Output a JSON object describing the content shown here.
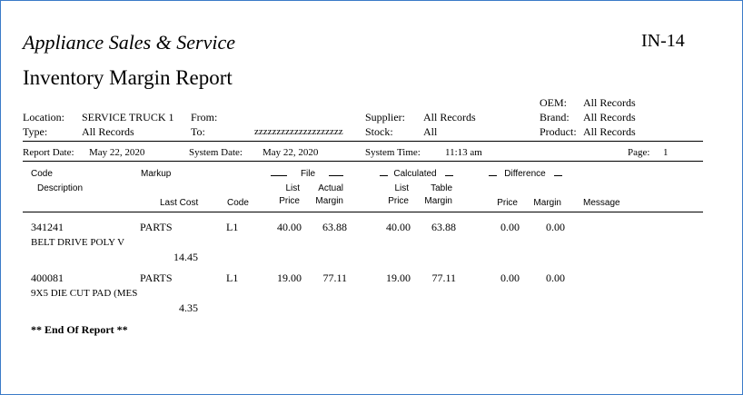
{
  "report": {
    "company": "Appliance Sales & Service",
    "code": "IN-14",
    "title": "Inventory Margin Report"
  },
  "params": {
    "oem_label": "OEM:",
    "oem_value": "All Records",
    "brand_label": "Brand:",
    "brand_value": "All Records",
    "product_label": "Product:",
    "product_value": "All Records",
    "location_label": "Location:",
    "location_value": "SERVICE TRUCK 1",
    "type_label": "Type:",
    "type_value": "All Records",
    "from_label": "From:",
    "from_value": "",
    "to_label": "To:",
    "to_value": "zzzzzzzzzzzzzzzzzzzz",
    "supplier_label": "Supplier:",
    "supplier_value": "All Records",
    "stock_label": "Stock:",
    "stock_value": "All"
  },
  "info": {
    "report_date_label": "Report Date:",
    "report_date": "May 22, 2020",
    "system_date_label": "System Date:",
    "system_date": "May 22, 2020",
    "system_time_label": "System Time:",
    "system_time": "11:13 am",
    "page_label": "Page:",
    "page": "1"
  },
  "columns": {
    "code": "Code",
    "description": "Description",
    "markup": "Markup",
    "last_cost": "Last Cost",
    "code2": "Code",
    "file": "File",
    "file_list1": "List",
    "file_list2": "Price",
    "file_actual1": "Actual",
    "file_actual2": "Margin",
    "calculated": "Calculated",
    "calc_list1": "List",
    "calc_list2": "Price",
    "calc_table1": "Table",
    "calc_table2": "Margin",
    "difference": "Difference",
    "diff_price": "Price",
    "diff_margin": "Margin",
    "message": "Message"
  },
  "rows": [
    {
      "code": "341241",
      "markup": "PARTS",
      "code2": "L1",
      "file_list_price": "40.00",
      "actual_margin": "63.88",
      "calc_list_price": "40.00",
      "table_margin": "63.88",
      "diff_price": "0.00",
      "diff_margin": "0.00",
      "description": "BELT DRIVE POLY V",
      "last_cost": "14.45",
      "message": ""
    },
    {
      "code": "400081",
      "markup": "PARTS",
      "code2": "L1",
      "file_list_price": "19.00",
      "actual_margin": "77.11",
      "calc_list_price": "19.00",
      "table_margin": "77.11",
      "diff_price": "0.00",
      "diff_margin": "0.00",
      "description": "9X5 DIE CUT PAD (MES",
      "last_cost": "4.35",
      "message": ""
    }
  ],
  "footer": {
    "end_text": "** End Of Report **"
  }
}
